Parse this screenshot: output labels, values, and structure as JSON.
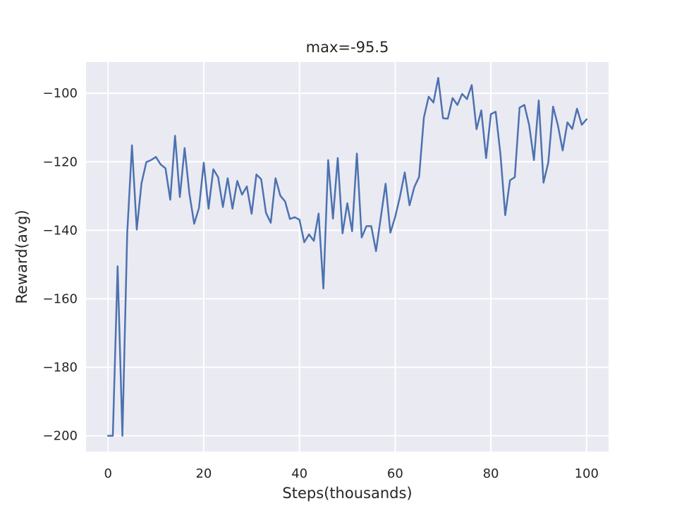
{
  "chart_data": {
    "type": "line",
    "title": "max=-95.5",
    "xlabel": "Steps(thousands)",
    "ylabel": "Reward(avg)",
    "xlim": [
      -4.6,
      104.6
    ],
    "ylim": [
      -204.6,
      -90.9
    ],
    "grid": true,
    "x_ticks": [
      0,
      20,
      40,
      60,
      80,
      100
    ],
    "y_ticks": [
      -200,
      -180,
      -160,
      -140,
      -120,
      -100
    ],
    "x_tick_labels": [
      "0",
      "20",
      "40",
      "60",
      "80",
      "100"
    ],
    "y_tick_labels": [
      "−200",
      "−180",
      "−160",
      "−140",
      "−120",
      "−100"
    ],
    "colors": {
      "background": "#eaeaf2",
      "grid": "#ffffff",
      "line": "#4c72b0",
      "text": "#262626"
    },
    "series": [
      {
        "x": [
          0,
          1,
          2,
          3,
          4,
          5,
          6,
          7,
          8,
          9,
          10,
          11,
          12,
          13,
          14,
          15,
          16,
          17,
          18,
          19,
          20,
          21,
          22,
          23,
          24,
          25,
          26,
          27,
          28,
          29,
          30,
          31,
          32,
          33,
          34,
          35,
          36,
          37,
          38,
          39,
          40,
          41,
          42,
          43,
          44,
          45,
          46,
          47,
          48,
          49,
          50,
          51,
          52,
          53,
          54,
          55,
          56,
          57,
          58,
          59,
          60,
          61,
          62,
          63,
          64,
          65,
          66,
          67,
          68,
          69,
          70,
          71,
          72,
          73,
          74,
          75,
          76,
          77,
          78,
          79,
          80,
          81,
          82,
          83,
          84,
          85,
          86,
          87,
          88,
          89,
          90,
          91,
          92,
          93,
          94,
          95,
          96,
          97,
          98,
          99,
          100
        ],
        "values": [
          -200.0,
          -200.0,
          -150.5,
          -200.0,
          -141.0,
          -115.2,
          -139.8,
          -126.2,
          -120.1,
          -119.5,
          -118.6,
          -120.8,
          -121.9,
          -131.1,
          -112.4,
          -130.3,
          -116.0,
          -129.3,
          -138.1,
          -133.5,
          -120.3,
          -133.7,
          -122.2,
          -124.5,
          -133.2,
          -124.8,
          -133.7,
          -125.6,
          -129.6,
          -127.2,
          -135.2,
          -123.7,
          -125.1,
          -134.9,
          -137.8,
          -124.8,
          -129.9,
          -131.6,
          -136.7,
          -136.2,
          -136.9,
          -143.5,
          -141.2,
          -143.1,
          -135.1,
          -157.0,
          -119.5,
          -136.6,
          -118.9,
          -140.9,
          -132.1,
          -140.3,
          -117.6,
          -142.1,
          -138.8,
          -138.8,
          -146.1,
          -136.2,
          -126.4,
          -140.7,
          -136.1,
          -130.2,
          -123.1,
          -132.7,
          -127.4,
          -124.4,
          -107.1,
          -101.0,
          -102.7,
          -95.5,
          -107.3,
          -107.4,
          -101.4,
          -103.4,
          -100.2,
          -101.7,
          -97.6,
          -110.5,
          -105.0,
          -118.9,
          -106.1,
          -105.4,
          -117.8,
          -135.6,
          -125.4,
          -124.5,
          -104.2,
          -103.4,
          -109.3,
          -119.5,
          -102.1,
          -126.1,
          -120.2,
          -103.9,
          -109.3,
          -116.7,
          -108.5,
          -110.4,
          -104.5,
          -109.2,
          -107.6
        ]
      }
    ]
  }
}
